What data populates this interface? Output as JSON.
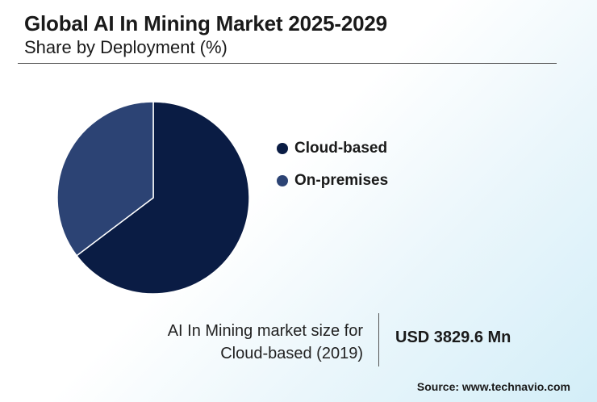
{
  "header": {
    "title": "Global AI In Mining Market 2025-2029",
    "subtitle": "Share by Deployment (%)"
  },
  "chart_data": {
    "type": "pie",
    "categories": [
      "Cloud-based",
      "On-premises"
    ],
    "values": [
      64.7,
      35.3
    ],
    "colors": [
      "#0a1c44",
      "#2c4374"
    ],
    "legend_position": "right"
  },
  "stat": {
    "label_line1": "AI In Mining market size for",
    "label_line2": "Cloud-based (2019)",
    "value": "USD 3829.6 Mn"
  },
  "footer": {
    "source": "Source: www.technavio.com"
  }
}
